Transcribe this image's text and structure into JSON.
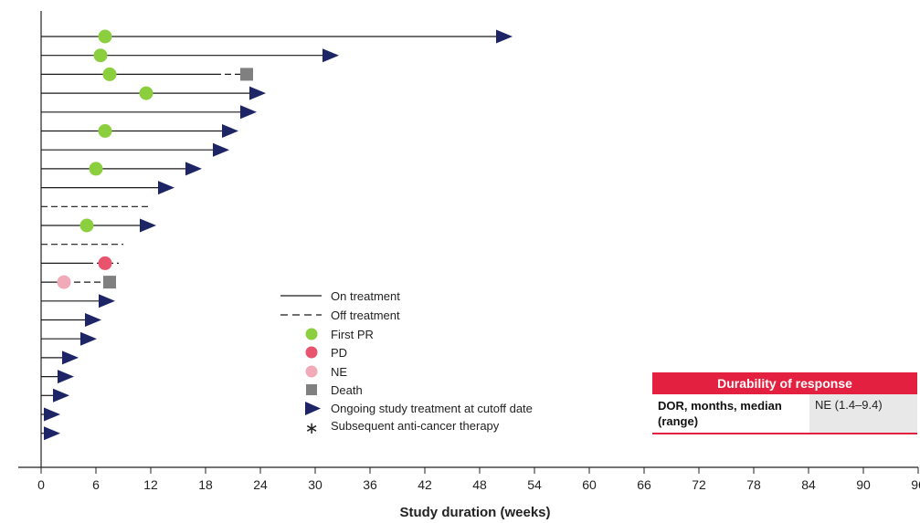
{
  "chart_data": {
    "type": "swimmer",
    "xlabel": "Study duration (weeks)",
    "xlim": [
      0,
      96
    ],
    "xticks": [
      0,
      6,
      12,
      18,
      24,
      30,
      36,
      42,
      48,
      54,
      60,
      66,
      72,
      78,
      84,
      90,
      96
    ],
    "xtick_labels": [
      "0",
      "6",
      "12",
      "18",
      "24",
      "30",
      "36",
      "42",
      "48",
      "54",
      "60",
      "66",
      "72",
      "78",
      "84",
      "90",
      "96"
    ],
    "legend": {
      "on_treatment": "On   treatment",
      "off_treatment": "Off   treatment",
      "first_pr": "First PR",
      "pd": "PD",
      "ne": "NE",
      "death": "Death",
      "ongoing": "Ongoing study treatment at cutoff date",
      "subsequent": "Subsequent anti-cancer therapy"
    },
    "colors": {
      "bar": "#1a1a1a",
      "first_pr": "#8bcf3f",
      "pd": "#e8546d",
      "ne": "#f0aab8",
      "death": "#808080",
      "ongoing": "#1d2566",
      "accent": "#e3203f"
    },
    "patients": [
      {
        "on": 50,
        "pr": 7,
        "ongoing": true
      },
      {
        "on": 31,
        "pr": 6.5,
        "ongoing": true
      },
      {
        "on": 19,
        "off": 22.5,
        "pr": 7.5,
        "death": 22.5
      },
      {
        "on": 23,
        "pr": 11.5,
        "ongoing": true
      },
      {
        "on": 22,
        "ongoing": true
      },
      {
        "on": 20,
        "pr": 7,
        "ongoing": true
      },
      {
        "on": 19,
        "ongoing": true
      },
      {
        "on": 16,
        "pr": 6,
        "ongoing": true
      },
      {
        "on": 13,
        "ongoing": true
      },
      {
        "on": 0,
        "off": 12
      },
      {
        "on": 11,
        "pr": 5,
        "ongoing": true
      },
      {
        "on": 0,
        "off": 9
      },
      {
        "on": 5,
        "off": 8.5,
        "pd": 7
      },
      {
        "on": 2.5,
        "off": 7.5,
        "ne": 2.5,
        "death": 7.5
      },
      {
        "on": 6.5,
        "ongoing": true
      },
      {
        "on": 5,
        "ongoing": true
      },
      {
        "on": 4.5,
        "ongoing": true
      },
      {
        "on": 2.5,
        "ongoing": true
      },
      {
        "on": 2,
        "ongoing": true
      },
      {
        "on": 1.5,
        "ongoing": true
      },
      {
        "on": 0.5,
        "ongoing": true
      },
      {
        "on": 0.5,
        "ongoing": true
      }
    ]
  },
  "table": {
    "title": "Durability of response",
    "row_label": "DOR, months, median (range)",
    "row_value": "NE (1.4–9.4)"
  }
}
